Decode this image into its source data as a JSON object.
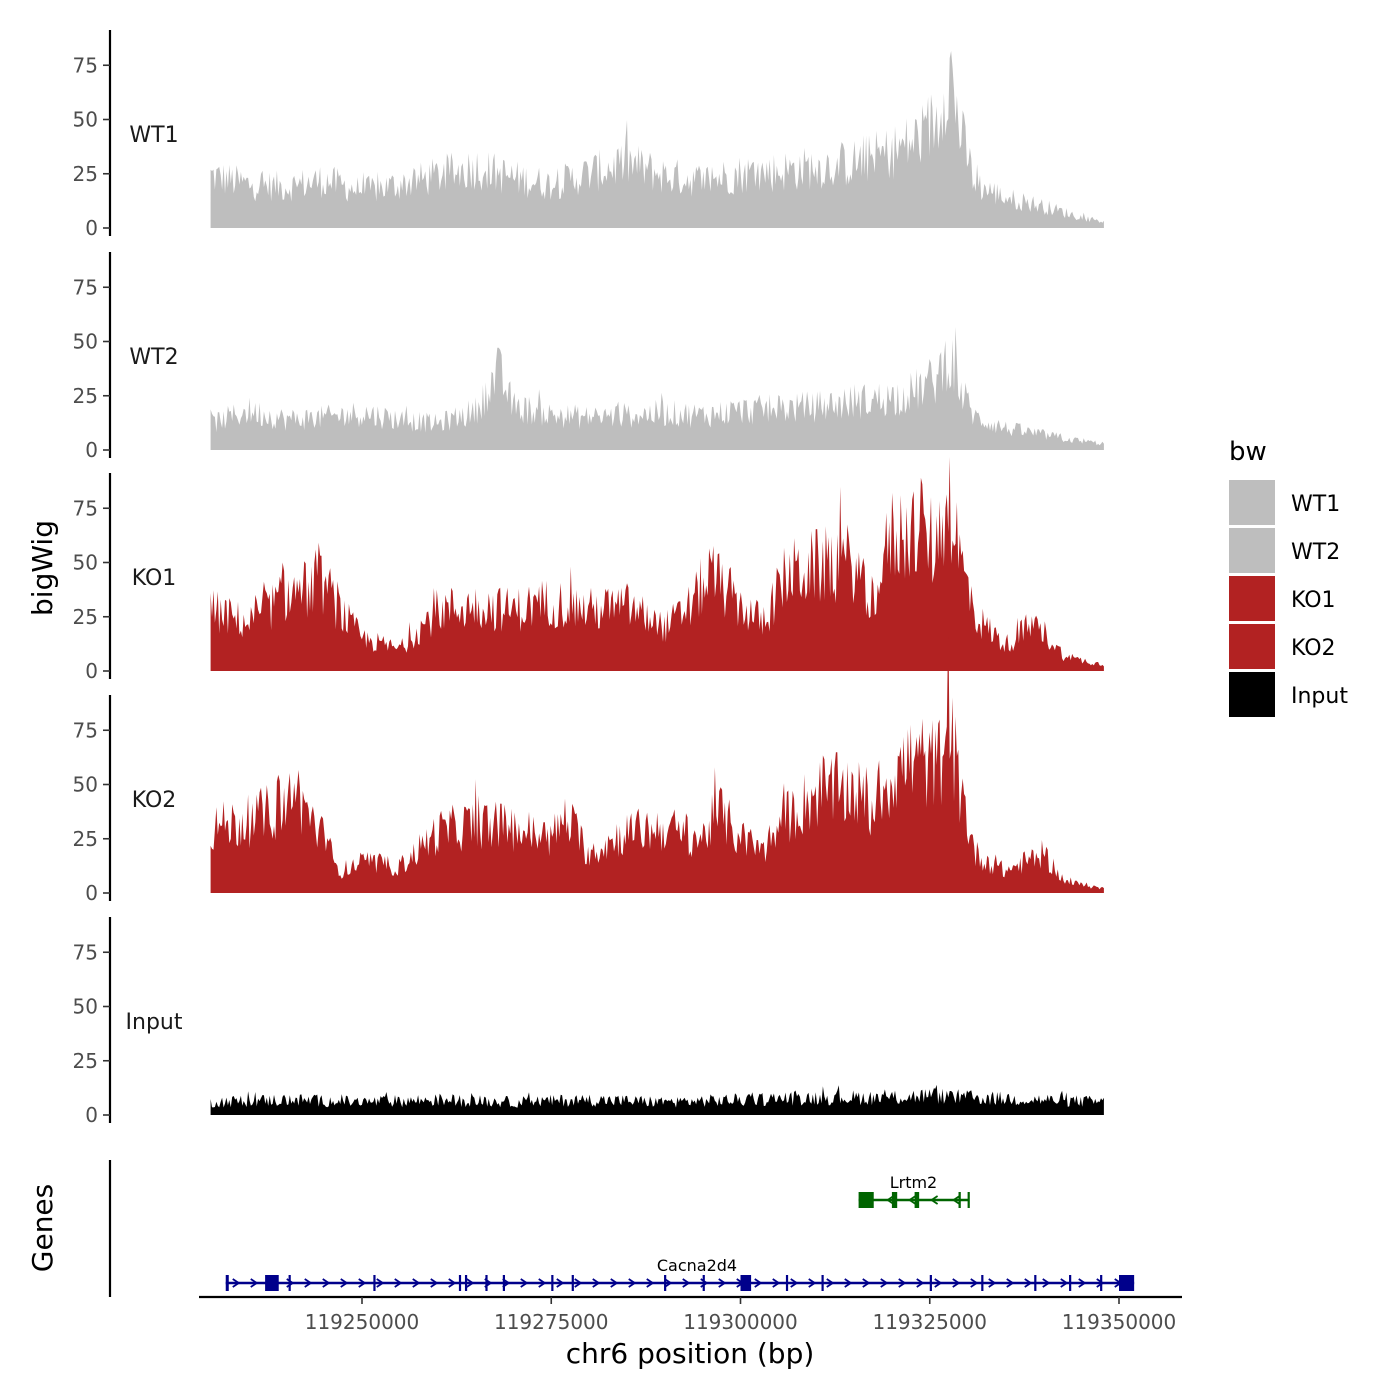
{
  "chart_data": [
    {
      "type": "area",
      "title": "",
      "ylabel": "bigWig",
      "xlabel": "chr6 position (bp)",
      "ylim": [
        0,
        92
      ],
      "yticks": [
        0,
        25,
        50,
        75
      ],
      "xlim": [
        119212000,
        119362000
      ],
      "xticks": [
        119250000,
        119275000,
        119300000,
        119325000,
        119350000
      ],
      "xtick_labels": [
        "119250000",
        "119275000",
        "119300000",
        "119325000",
        "119350000"
      ],
      "region": [
        119230000,
        119348000
      ],
      "legend": {
        "title": "bw",
        "position": "right",
        "entries": [
          {
            "label": "WT1",
            "color": "#bebebe"
          },
          {
            "label": "WT2",
            "color": "#bebebe"
          },
          {
            "label": "KO1",
            "color": "#b22222"
          },
          {
            "label": "KO2",
            "color": "#b22222"
          },
          {
            "label": "Input",
            "color": "#000000"
          }
        ]
      },
      "series": [
        {
          "name": "WT1",
          "color": "#bebebe",
          "x": [
            119230000,
            119235000,
            119240000,
            119245000,
            119250000,
            119255000,
            119260000,
            119265000,
            119270000,
            119275000,
            119280000,
            119285000,
            119290000,
            119295000,
            119300000,
            119305000,
            119310000,
            119315000,
            119320000,
            119323000,
            119326000,
            119327500,
            119329000,
            119331000,
            119335000,
            119340000,
            119345000,
            119348000
          ],
          "values": [
            24,
            20,
            19,
            22,
            17,
            20,
            24,
            28,
            23,
            20,
            25,
            30,
            24,
            22,
            25,
            26,
            28,
            30,
            35,
            40,
            50,
            76,
            45,
            20,
            14,
            10,
            5,
            3
          ]
        },
        {
          "name": "WT2",
          "color": "#bebebe",
          "x": [
            119230000,
            119235000,
            119240000,
            119245000,
            119250000,
            119255000,
            119260000,
            119265000,
            119268000,
            119270000,
            119275000,
            119280000,
            119285000,
            119290000,
            119295000,
            119300000,
            119305000,
            119310000,
            119315000,
            119320000,
            119323000,
            119326000,
            119327500,
            119329000,
            119331000,
            119335000,
            119340000,
            119345000,
            119348000
          ],
          "values": [
            12,
            18,
            14,
            15,
            17,
            14,
            12,
            18,
            36,
            20,
            16,
            15,
            16,
            17,
            16,
            18,
            19,
            20,
            22,
            24,
            27,
            33,
            45,
            28,
            15,
            10,
            7,
            4,
            3
          ]
        },
        {
          "name": "KO1",
          "color": "#b22222",
          "x": [
            119230000,
            119235000,
            119240000,
            119245000,
            119247000,
            119250000,
            119253000,
            119255000,
            119260000,
            119265000,
            119270000,
            119275000,
            119280000,
            119285000,
            119290000,
            119293000,
            119296000,
            119300000,
            119303000,
            119306000,
            119310000,
            119315000,
            119317000,
            119320000,
            119323000,
            119326000,
            119327500,
            119329000,
            119331000,
            119335000,
            119338000,
            119340000,
            119343000,
            119345000,
            119348000
          ],
          "values": [
            28,
            22,
            35,
            40,
            28,
            15,
            12,
            10,
            28,
            30,
            28,
            32,
            28,
            30,
            20,
            28,
            45,
            30,
            22,
            44,
            48,
            50,
            30,
            62,
            65,
            58,
            84,
            52,
            25,
            12,
            20,
            18,
            6,
            5,
            3
          ]
        },
        {
          "name": "KO2",
          "color": "#b22222",
          "x": [
            119230000,
            119235000,
            119240000,
            119241000,
            119243000,
            119245000,
            119247000,
            119250000,
            119255000,
            119260000,
            119265000,
            119270000,
            119275000,
            119277000,
            119280000,
            119285000,
            119290000,
            119295000,
            119297000,
            119300000,
            119303000,
            119306000,
            119310000,
            119315000,
            119317000,
            119320000,
            119323000,
            119326000,
            119327500,
            119329000,
            119331000,
            119335000,
            119338000,
            119340000,
            119343000,
            119345000,
            119348000
          ],
          "values": [
            30,
            33,
            40,
            48,
            36,
            25,
            10,
            14,
            12,
            28,
            32,
            30,
            25,
            35,
            18,
            28,
            30,
            25,
            38,
            25,
            20,
            34,
            46,
            48,
            38,
            55,
            62,
            58,
            78,
            48,
            18,
            10,
            15,
            18,
            5,
            4,
            2
          ]
        },
        {
          "name": "Input",
          "color": "#000000",
          "x": [
            119230000,
            119240000,
            119250000,
            119260000,
            119270000,
            119280000,
            119290000,
            119300000,
            119310000,
            119320000,
            119325000,
            119330000,
            119340000,
            119348000
          ],
          "values": [
            6,
            7,
            6,
            7,
            6,
            7,
            6,
            7,
            8,
            8,
            9,
            8,
            7,
            6
          ]
        }
      ]
    },
    {
      "type": "gene-track",
      "ylabel": "Genes",
      "genes": [
        {
          "name": "Lrtm2",
          "strand": "-",
          "start": 119315600,
          "end": 119330100,
          "color": "#006400",
          "exons": [
            [
              119315600,
              119317600
            ],
            [
              119320000,
              119320700
            ],
            [
              119323000,
              119323600
            ],
            [
              119328800,
              119329100
            ],
            [
              119330000,
              119330100
            ]
          ]
        },
        {
          "name": "Cacna2d4",
          "strand": "+",
          "start": 119232000,
          "end": 119352000,
          "color": "#00008b",
          "exons": [
            [
              119232000,
              119232400
            ],
            [
              119237200,
              119239000
            ],
            [
              119240300,
              119240500
            ],
            [
              119251500,
              119251700
            ],
            [
              119262800,
              119263000
            ],
            [
              119263600,
              119263800
            ],
            [
              119266300,
              119266500
            ],
            [
              119268600,
              119268800
            ],
            [
              119275000,
              119275200
            ],
            [
              119277700,
              119277900
            ],
            [
              119289900,
              119290100
            ],
            [
              119295000,
              119295200
            ],
            [
              119300000,
              119301400
            ],
            [
              119306000,
              119306200
            ],
            [
              119310700,
              119310900
            ],
            [
              119325000,
              119325200
            ],
            [
              119331800,
              119332000
            ],
            [
              119338800,
              119339000
            ],
            [
              119343400,
              119343600
            ],
            [
              119347500,
              119347700
            ],
            [
              119350000,
              119352000
            ]
          ]
        }
      ]
    }
  ]
}
